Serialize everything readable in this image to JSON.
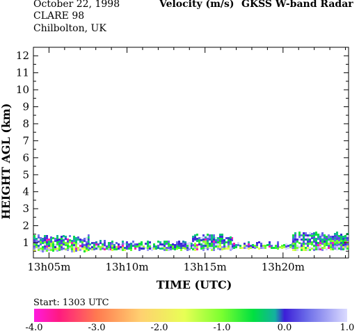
{
  "header": {
    "date": "October  22, 1998",
    "campaign": "CLARE 98",
    "location": "Chilbolton, UK",
    "quantity": "Velocity (m/s)",
    "instrument": "GKSS  W-band Radar"
  },
  "chart_data": {
    "type": "heatmap",
    "xlabel": "TIME (UTC)",
    "ylabel": "HEIGHT AGL (km)",
    "x_ticks": [
      "13h05m",
      "13h10m",
      "13h15m",
      "13h20m"
    ],
    "x_tick_minutes": [
      5,
      10,
      15,
      20
    ],
    "xlim_minutes": [
      4,
      24.2
    ],
    "y_ticks": [
      1,
      2,
      3,
      4,
      5,
      6,
      7,
      8,
      9,
      10,
      11,
      12
    ],
    "ylim": [
      0.1,
      12.5
    ],
    "start_label": "Start: 1303 UTC",
    "colorbar": {
      "range": [
        -4.0,
        1.0
      ],
      "tick_labels": [
        "-4.0",
        "-3.0",
        "-2.0",
        "-1.0",
        "0.0",
        "1.0"
      ],
      "stops": [
        {
          "value": -4.0,
          "color": "#ff1ae0"
        },
        {
          "value": -3.6,
          "color": "#ff1a80"
        },
        {
          "value": -3.0,
          "color": "#ff7a50"
        },
        {
          "value": -2.3,
          "color": "#ffd070"
        },
        {
          "value": -1.6,
          "color": "#e8ff55"
        },
        {
          "value": -1.0,
          "color": "#7aff30"
        },
        {
          "value": -0.5,
          "color": "#00e040"
        },
        {
          "value": -0.15,
          "color": "#14b0a0"
        },
        {
          "value": 0.0,
          "color": "#3c1ed8"
        },
        {
          "value": 0.35,
          "color": "#6a6ae8"
        },
        {
          "value": 1.0,
          "color": "#dcdcff"
        }
      ]
    },
    "layer_segments": [
      {
        "t_start": 4.0,
        "t_end": 7.6,
        "base_km": 0.55,
        "top_km": 1.4
      },
      {
        "t_start": 7.6,
        "t_end": 9.0,
        "base_km": 0.6,
        "top_km": 1.05
      },
      {
        "t_start": 9.0,
        "t_end": 14.2,
        "base_km": 0.6,
        "top_km": 1.05
      },
      {
        "t_start": 14.2,
        "t_end": 16.8,
        "base_km": 0.6,
        "top_km": 1.45
      },
      {
        "t_start": 16.8,
        "t_end": 20.6,
        "base_km": 0.7,
        "top_km": 1.0
      },
      {
        "t_start": 20.6,
        "t_end": 24.2,
        "base_km": 0.6,
        "top_km": 1.55
      }
    ]
  }
}
